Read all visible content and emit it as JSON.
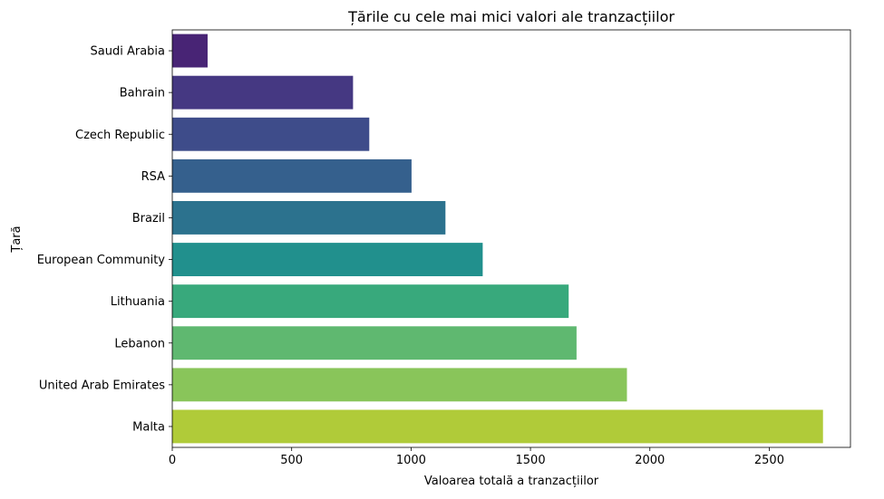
{
  "chart_data": {
    "type": "bar",
    "orientation": "horizontal",
    "title": "Țările cu cele mai mici valori ale tranzacțiilor",
    "xlabel": "Valoarea totală a tranzacțiilor",
    "ylabel": "Țară",
    "categories": [
      "Saudi Arabia",
      "Bahrain",
      "Czech Republic",
      "RSA",
      "Brazil",
      "European Community",
      "Lithuania",
      "Lebanon",
      "United Arab Emirates",
      "Malta"
    ],
    "values": [
      148,
      757,
      825,
      1002,
      1144,
      1300,
      1660,
      1693,
      1904,
      2725
    ],
    "colors": [
      "#482475",
      "#453882",
      "#3e4c8a",
      "#35608d",
      "#2c728e",
      "#21908d",
      "#38a97c",
      "#5fb870",
      "#89c55a",
      "#b0cb39"
    ],
    "xlim": [
      0,
      2840
    ],
    "xticks": [
      0,
      500,
      1000,
      1500,
      2000,
      2500
    ],
    "xtick_labels": [
      "0",
      "500",
      "1000",
      "1500",
      "2000",
      "2500"
    ],
    "grid": false,
    "legend": "none"
  }
}
